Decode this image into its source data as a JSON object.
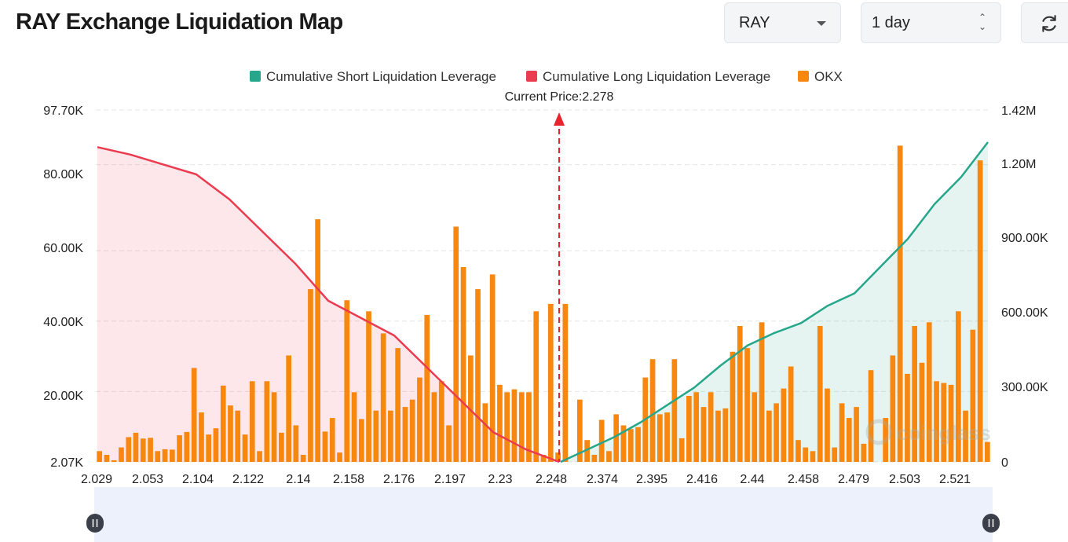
{
  "page": {
    "title": "RAY Exchange Liquidation Map",
    "coin_select": "RAY",
    "range_select": "1 day",
    "refresh_icon": "refresh-icon",
    "watermark": "coinglass"
  },
  "chart_data": {
    "type": "bar",
    "current_price_label": "Current Price:2.278",
    "current_price": 2.278,
    "legend": [
      {
        "name": "Cumulative Short Liquidation Leverage",
        "color": "#26a68a"
      },
      {
        "name": "Cumulative Long Liquidation Leverage",
        "color": "#eb3b4f"
      },
      {
        "name": "OKX",
        "color": "#f7870f"
      }
    ],
    "legend_position": "top-center",
    "grid": true,
    "x_tick_labels": [
      "2.029",
      "2.053",
      "2.104",
      "2.122",
      "2.14",
      "2.158",
      "2.176",
      "2.197",
      "2.23",
      "2.248",
      "2.374",
      "2.395",
      "2.416",
      "2.44",
      "2.458",
      "2.479",
      "2.503",
      "2.521"
    ],
    "y_left": {
      "ticks": [
        "97.70K",
        "80.00K",
        "60.00K",
        "40.00K",
        "20.00K",
        "2.07K"
      ],
      "range": [
        2070,
        97700
      ]
    },
    "y_right": {
      "ticks": [
        "1.42M",
        "1.20M",
        "900.00K",
        "600.00K",
        "300.00K",
        "0"
      ],
      "range": [
        0,
        1420000
      ]
    },
    "series": [
      {
        "name": "OKX",
        "axis": "left",
        "values": [
          5000,
          4000,
          2500,
          6000,
          8800,
          10000,
          8400,
          8600,
          5000,
          5500,
          5400,
          9300,
          10200,
          27600,
          15500,
          9500,
          11200,
          22800,
          17400,
          16000,
          9500,
          24000,
          5000,
          24000,
          21000,
          10000,
          31000,
          12000,
          4000,
          49000,
          68000,
          10300,
          14000,
          4600,
          46000,
          21000,
          13700,
          43000,
          16000,
          37000,
          16000,
          33000,
          17000,
          19000,
          25000,
          42000,
          21000,
          24000,
          12000,
          66000,
          55000,
          31000,
          49000,
          18000,
          53000,
          23000,
          21000,
          21800,
          21000,
          21000,
          43000,
          4000,
          45000,
          4600,
          45000,
          0,
          19000,
          8000,
          4000,
          13500,
          5000,
          15000,
          12000,
          11000,
          11500,
          25000,
          30000,
          15000,
          15500,
          30000,
          8500,
          20000,
          21000,
          17000,
          21000,
          16000,
          16600,
          32000,
          39000,
          33000,
          21000,
          40000,
          16000,
          18000,
          22000,
          28000,
          8000,
          6000,
          5000,
          39000,
          22000,
          6000,
          18000,
          14000,
          17000,
          7000,
          27000,
          2000,
          14000,
          31000,
          88000,
          26000,
          39000,
          29000,
          40000,
          24000,
          23500,
          23000,
          43000,
          16000,
          38000,
          84000,
          7500
        ]
      },
      {
        "name": "Cumulative Long Liquidation Leverage",
        "axis": "right",
        "side": "long",
        "values": [
          1270000,
          1240000,
          1200000,
          1160000,
          1060000,
          930000,
          800000,
          650000,
          580000,
          510000,
          380000,
          250000,
          120000,
          50000,
          0
        ]
      },
      {
        "name": "Cumulative Short Liquidation Leverage",
        "axis": "right",
        "side": "short",
        "values": [
          0,
          50000,
          100000,
          160000,
          230000,
          300000,
          390000,
          470000,
          520000,
          560000,
          630000,
          680000,
          790000,
          900000,
          1040000,
          1150000,
          1290000
        ]
      }
    ]
  }
}
